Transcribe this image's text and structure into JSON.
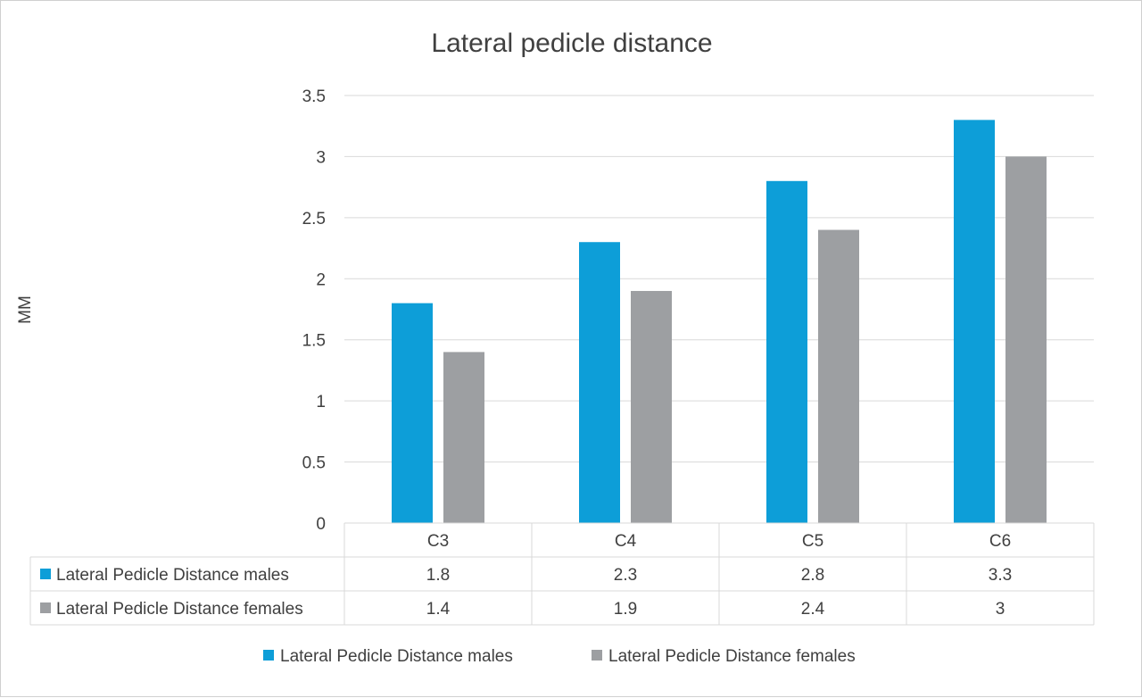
{
  "chart_data": {
    "type": "bar",
    "title": "Lateral pedicle distance",
    "ylabel": "MM",
    "xlabel": "",
    "categories": [
      "C3",
      "C4",
      "C5",
      "C6"
    ],
    "ylim": [
      0,
      3.5
    ],
    "yticks": [
      "0",
      "0.5",
      "1",
      "1.5",
      "2",
      "2.5",
      "3",
      "3.5"
    ],
    "ytick_values": [
      0,
      0.5,
      1,
      1.5,
      2,
      2.5,
      3,
      3.5
    ],
    "grid": true,
    "legend_position": "bottom",
    "data_table": true,
    "series": [
      {
        "name": "Lateral Pedicle Distance males",
        "color": "#0d9ed8",
        "values": [
          1.8,
          2.3,
          2.8,
          3.3
        ],
        "labels": [
          "1.8",
          "2.3",
          "2.8",
          "3.3"
        ]
      },
      {
        "name": "Lateral Pedicle Distance females",
        "color": "#9d9fa2",
        "values": [
          1.4,
          1.9,
          2.4,
          3
        ],
        "labels": [
          "1.4",
          "1.9",
          "2.4",
          "3"
        ]
      }
    ]
  }
}
